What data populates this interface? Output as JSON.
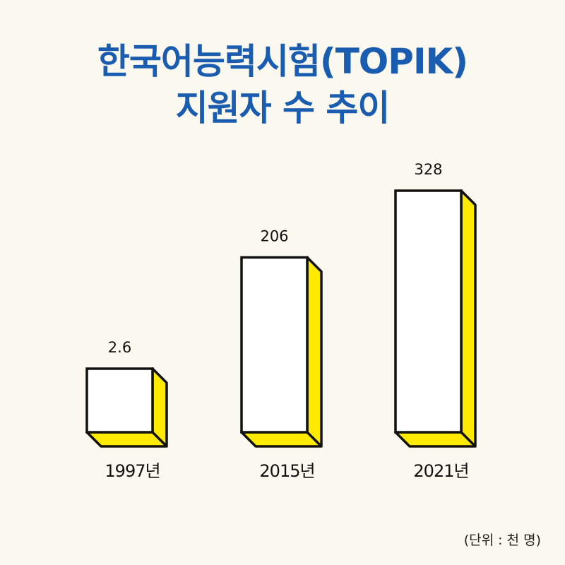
{
  "title_line1": "한국어능력시험(TOPIK)",
  "title_line2": "지원자 수 추이",
  "unit": "(단위 : 천 명)",
  "colors": {
    "background": "#fbf9ef",
    "title": "#1a5cb0",
    "bar_face": "#ffffff",
    "bar_side": "#ffea00",
    "outline": "#111111"
  },
  "chart_data": {
    "type": "bar",
    "title": "한국어능력시험(TOPIK) 지원자 수 추이",
    "categories": [
      "1997년",
      "2015년",
      "2021년"
    ],
    "values": [
      2.6,
      206,
      328
    ],
    "value_labels": [
      "2.6",
      "206",
      "328"
    ],
    "unit": "(단위 : 천 명)",
    "grid": false,
    "style": "3d-extruded"
  }
}
